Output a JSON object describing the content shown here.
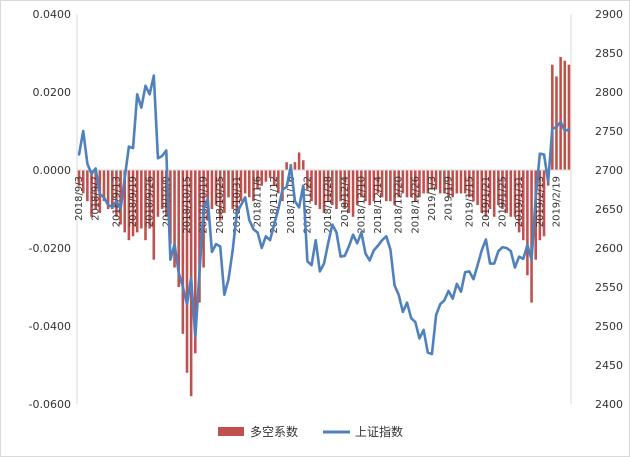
{
  "chart_data": {
    "type": "bar+line",
    "left_axis": {
      "ylim": [
        -0.06,
        0.04
      ],
      "ticks": [
        "0.0400",
        "0.0200",
        "0.0000",
        "-0.0200",
        "-0.0400",
        "-0.0600"
      ]
    },
    "right_axis": {
      "ylim": [
        2400,
        2900
      ],
      "ticks": [
        "2900",
        "2850",
        "2800",
        "2750",
        "2700",
        "2650",
        "2600",
        "2550",
        "2500",
        "2450",
        "2400"
      ]
    },
    "x_tick_labels": [
      "2018/9/3",
      "2018/9/7",
      "2018/9/13",
      "2018/9/19",
      "2018/9/26",
      "2018/10/9",
      "2018/10/15",
      "2018/10/19",
      "2018/10/25",
      "2018/10/31",
      "2018/11/6",
      "2018/11/12",
      "2018/11/16",
      "2018/11/22",
      "2018/11/28",
      "2018/12/4",
      "2018/12/10",
      "2018/12/14",
      "2018/12/20",
      "2018/12/26",
      "2019/1/3",
      "2019/1/9",
      "2019/1/15",
      "2019/1/21",
      "2019/1/25",
      "2019/1/31",
      "2019/2/13",
      "2019/2/19"
    ],
    "legend": [
      "多空系数",
      "上证指数"
    ],
    "legend_position": "bottom",
    "colors": {
      "bars": "#c0504d",
      "line": "#4f81bd",
      "axis": "#d9d9d9",
      "text": "#333333"
    },
    "series": [
      {
        "name": "多空系数",
        "axis": "left",
        "values": [
          -0.004,
          -0.006,
          -0.008,
          -0.012,
          -0.01,
          -0.011,
          -0.008,
          -0.01,
          -0.01,
          -0.012,
          -0.014,
          -0.016,
          -0.018,
          -0.017,
          -0.016,
          -0.015,
          -0.018,
          -0.015,
          -0.023,
          -0.012,
          -0.01,
          -0.012,
          -0.019,
          -0.025,
          -0.03,
          -0.042,
          -0.052,
          -0.058,
          -0.047,
          -0.034,
          -0.025,
          -0.013,
          -0.01,
          -0.009,
          -0.013,
          -0.011,
          -0.007,
          -0.01,
          -0.012,
          -0.008,
          -0.006,
          -0.007,
          -0.008,
          -0.005,
          -0.004,
          -0.003,
          -0.002,
          -0.004,
          -0.006,
          -0.008,
          0.002,
          0.0015,
          0.002,
          0.0045,
          0.0025,
          -0.005,
          -0.008,
          -0.009,
          -0.01,
          -0.011,
          -0.008,
          -0.009,
          -0.01,
          -0.008,
          -0.01,
          -0.011,
          -0.012,
          -0.009,
          -0.007,
          -0.008,
          -0.009,
          -0.008,
          -0.006,
          -0.007,
          -0.008,
          -0.008,
          -0.009,
          -0.007,
          -0.006,
          -0.007,
          -0.007,
          -0.008,
          -0.007,
          -0.006,
          -0.006,
          -0.005,
          -0.005,
          -0.006,
          -0.006,
          -0.007,
          -0.007,
          -0.006,
          -0.006,
          -0.006,
          -0.007,
          -0.008,
          -0.009,
          -0.011,
          -0.012,
          -0.01,
          -0.012,
          -0.009,
          -0.01,
          -0.011,
          -0.012,
          -0.012,
          -0.016,
          -0.018,
          -0.027,
          -0.034,
          -0.023,
          -0.018,
          -0.017,
          -0.004,
          0.027,
          0.024,
          0.029,
          0.028,
          0.027
        ]
      },
      {
        "name": "上证指数",
        "axis": "right",
        "values": [
          2720,
          2750,
          2708,
          2695,
          2702,
          2669,
          2665,
          2655,
          2653,
          2660,
          2650,
          2690,
          2730,
          2728,
          2797,
          2780,
          2808,
          2797,
          2821,
          2715,
          2718,
          2725,
          2585,
          2605,
          2568,
          2550,
          2528,
          2562,
          2486,
          2568,
          2650,
          2663,
          2595,
          2605,
          2602,
          2540,
          2560,
          2597,
          2645,
          2655,
          2665,
          2636,
          2624,
          2620,
          2600,
          2615,
          2610,
          2630,
          2650,
          2675,
          2678,
          2705,
          2660,
          2652,
          2680,
          2583,
          2578,
          2610,
          2570,
          2580,
          2606,
          2630,
          2620,
          2589,
          2590,
          2602,
          2617,
          2606,
          2620,
          2593,
          2584,
          2597,
          2603,
          2610,
          2615,
          2598,
          2552,
          2540,
          2518,
          2530,
          2510,
          2505,
          2484,
          2495,
          2466,
          2464,
          2514,
          2528,
          2533,
          2545,
          2535,
          2554,
          2544,
          2569,
          2570,
          2560,
          2578,
          2597,
          2611,
          2580,
          2580,
          2596,
          2601,
          2600,
          2596,
          2575,
          2589,
          2586,
          2604,
          2585,
          2665,
          2721,
          2720,
          2685,
          2753,
          2755,
          2762,
          2750,
          2752
        ]
      }
    ]
  }
}
